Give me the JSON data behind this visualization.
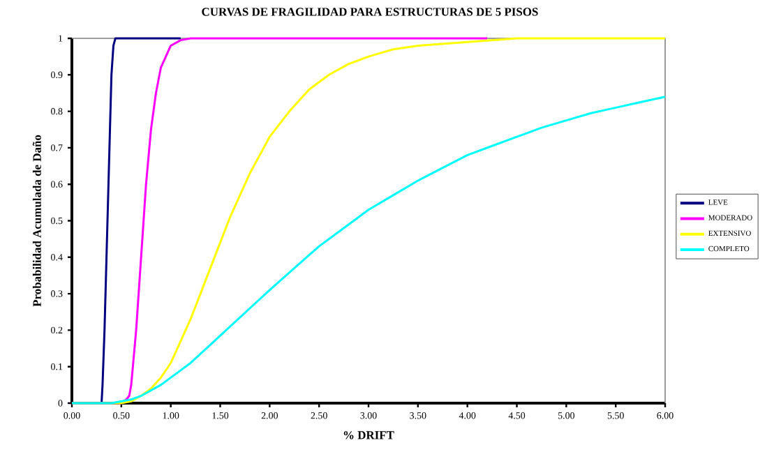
{
  "chart_data": {
    "type": "line",
    "title": "CURVAS DE FRAGILIDAD PARA ESTRUCTURAS DE 5 PISOS",
    "xlabel": "% DRIFT",
    "ylabel": "Probabilidad Acumulada de Daño",
    "xlim": [
      0,
      6
    ],
    "ylim": [
      0,
      1
    ],
    "xticks": [
      {
        "value": 0,
        "label": "0.00"
      },
      {
        "value": 0.5,
        "label": "0.50"
      },
      {
        "value": 1,
        "label": "1.00"
      },
      {
        "value": 1.5,
        "label": "1.50"
      },
      {
        "value": 2,
        "label": "2.00"
      },
      {
        "value": 2.5,
        "label": "2.50"
      },
      {
        "value": 3,
        "label": "3.00"
      },
      {
        "value": 3.5,
        "label": "3.50"
      },
      {
        "value": 4,
        "label": "4.00"
      },
      {
        "value": 4.5,
        "label": "4.50"
      },
      {
        "value": 5,
        "label": "5.00"
      },
      {
        "value": 5.5,
        "label": "5.50"
      },
      {
        "value": 6,
        "label": "6.00"
      }
    ],
    "yticks": [
      0,
      0.1,
      0.2,
      0.3,
      0.4,
      0.5,
      0.6,
      0.7,
      0.8,
      0.9,
      1
    ],
    "legend": "right",
    "series": [
      {
        "name": "LEVE",
        "color": "#000080",
        "x": [
          0,
          0.3,
          0.31,
          0.33,
          0.35,
          0.37,
          0.39,
          0.4,
          0.42,
          0.44,
          1.1
        ],
        "values": [
          0,
          0,
          0.05,
          0.2,
          0.4,
          0.6,
          0.8,
          0.9,
          0.98,
          1,
          1
        ]
      },
      {
        "name": "MODERADO",
        "color": "#ff00ff",
        "x": [
          0,
          0.5,
          0.55,
          0.58,
          0.6,
          0.65,
          0.7,
          0.75,
          0.8,
          0.85,
          0.9,
          1.0,
          1.1,
          1.2,
          4.2
        ],
        "values": [
          0,
          0,
          0.01,
          0.02,
          0.05,
          0.2,
          0.4,
          0.6,
          0.75,
          0.85,
          0.92,
          0.98,
          0.995,
          1,
          1
        ]
      },
      {
        "name": "EXTENSIVO",
        "color": "#ffff00",
        "x": [
          0,
          0.5,
          0.6,
          0.7,
          0.8,
          0.9,
          1.0,
          1.1,
          1.2,
          1.3,
          1.4,
          1.5,
          1.6,
          1.7,
          1.8,
          1.9,
          2.0,
          2.2,
          2.4,
          2.6,
          2.8,
          3.0,
          3.25,
          3.5,
          4.0,
          4.5,
          6
        ],
        "values": [
          0,
          0,
          0.005,
          0.02,
          0.04,
          0.07,
          0.11,
          0.17,
          0.23,
          0.3,
          0.37,
          0.44,
          0.51,
          0.57,
          0.63,
          0.68,
          0.73,
          0.8,
          0.86,
          0.9,
          0.93,
          0.95,
          0.97,
          0.98,
          0.99,
          1,
          1
        ]
      },
      {
        "name": "COMPLETO",
        "color": "#00ffff",
        "x": [
          0,
          0.4,
          0.5,
          0.6,
          0.7,
          0.8,
          0.9,
          1.0,
          1.2,
          1.4,
          1.6,
          1.8,
          2.0,
          2.25,
          2.5,
          2.75,
          3.0,
          3.25,
          3.5,
          3.75,
          4.0,
          4.25,
          4.5,
          4.75,
          5.0,
          5.25,
          5.5,
          5.75,
          6.0
        ],
        "values": [
          0,
          0,
          0.005,
          0.01,
          0.02,
          0.035,
          0.05,
          0.07,
          0.11,
          0.16,
          0.21,
          0.26,
          0.31,
          0.37,
          0.43,
          0.48,
          0.53,
          0.57,
          0.61,
          0.645,
          0.68,
          0.705,
          0.73,
          0.755,
          0.775,
          0.795,
          0.81,
          0.825,
          0.84
        ]
      }
    ]
  }
}
